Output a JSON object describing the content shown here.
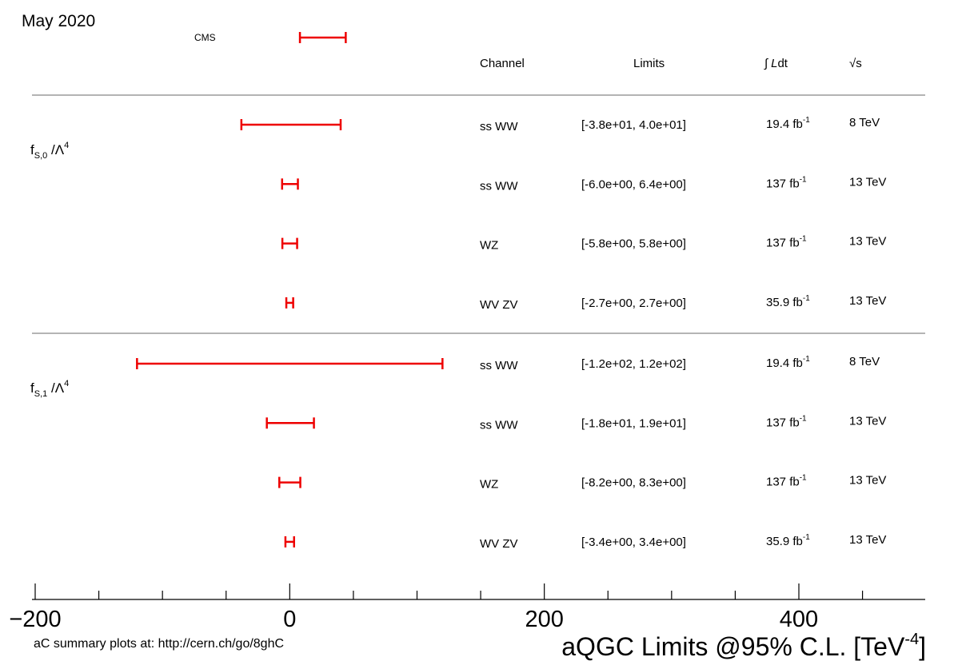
{
  "header": {
    "date": "May 2020",
    "legend_label": "CMS",
    "col_channel": "Channel",
    "col_limits": "Limits",
    "col_lumi_symbol": "∫",
    "col_lumi_italic": "L",
    "col_lumi_rest": "dt",
    "col_energy": "√s"
  },
  "footer": {
    "note": "aC summary plots at: http://cern.ch/go/8ghC",
    "xlabel_main": "aQGC Limits @95% C.L. [TeV",
    "xlabel_exp": "-4",
    "xlabel_close": "]"
  },
  "colors": {
    "error_bar": "#ee0000",
    "separator": "#888888",
    "axis": "#000000"
  },
  "chart_data": {
    "type": "interval",
    "x_axis": {
      "range": [
        -200,
        500
      ],
      "major_ticks": [
        -200,
        0,
        200,
        400
      ],
      "minor_step": 50,
      "tick_labels": [
        "−200",
        "0",
        "200",
        "400"
      ]
    },
    "legend": {
      "label": "CMS",
      "sample_interval": [
        8,
        44
      ]
    },
    "groups": [
      {
        "param_main": "f",
        "param_sub": "S,0",
        "param_mid": " /Λ",
        "param_sup": "4",
        "rows": [
          {
            "low": -38,
            "high": 40,
            "channel": "ss WW",
            "limits": "[-3.8e+01, 4.0e+01]",
            "lumi": "19.4 fb",
            "lumi_exp": "-1",
            "energy": "8 TeV"
          },
          {
            "low": -6.0,
            "high": 6.4,
            "channel": "ss WW",
            "limits": "[-6.0e+00, 6.4e+00]",
            "lumi": "137 fb",
            "lumi_exp": "-1",
            "energy": "13 TeV"
          },
          {
            "low": -5.8,
            "high": 5.8,
            "channel": "WZ",
            "limits": "[-5.8e+00, 5.8e+00]",
            "lumi": "137 fb",
            "lumi_exp": "-1",
            "energy": "13 TeV"
          },
          {
            "low": -2.7,
            "high": 2.7,
            "channel": "WV ZV",
            "limits": "[-2.7e+00, 2.7e+00]",
            "lumi": "35.9 fb",
            "lumi_exp": "-1",
            "energy": "13 TeV"
          }
        ]
      },
      {
        "param_main": "f",
        "param_sub": "S,1",
        "param_mid": " /Λ",
        "param_sup": "4",
        "rows": [
          {
            "low": -120,
            "high": 120,
            "channel": "ss WW",
            "limits": "[-1.2e+02, 1.2e+02]",
            "lumi": "19.4 fb",
            "lumi_exp": "-1",
            "energy": "8 TeV"
          },
          {
            "low": -18,
            "high": 19,
            "channel": "ss WW",
            "limits": "[-1.8e+01, 1.9e+01]",
            "lumi": "137 fb",
            "lumi_exp": "-1",
            "energy": "13 TeV"
          },
          {
            "low": -8.2,
            "high": 8.3,
            "channel": "WZ",
            "limits": "[-8.2e+00, 8.3e+00]",
            "lumi": "137 fb",
            "lumi_exp": "-1",
            "energy": "13 TeV"
          },
          {
            "low": -3.4,
            "high": 3.4,
            "channel": "WV ZV",
            "limits": "[-3.4e+00, 3.4e+00]",
            "lumi": "35.9 fb",
            "lumi_exp": "-1",
            "energy": "13 TeV"
          }
        ]
      }
    ]
  }
}
